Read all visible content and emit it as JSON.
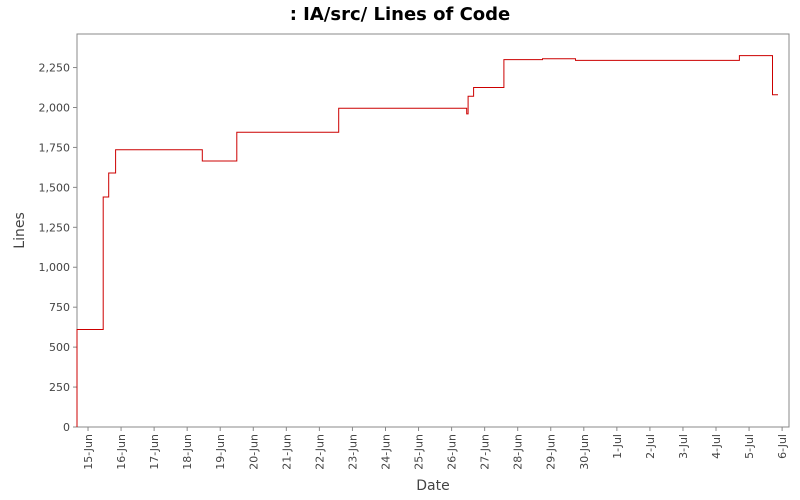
{
  "chart_data": {
    "type": "line",
    "title": ": IA/src/ Lines of Code",
    "xlabel": "Date",
    "ylabel": "Lines",
    "line_color": "#cc0000",
    "step": true,
    "grid": false,
    "legend": "none",
    "xlim": [
      "2006-06-14T16:00",
      "2006-07-06T05:00"
    ],
    "ylim": [
      0,
      2460
    ],
    "y_ticks": [
      0,
      250,
      500,
      750,
      1000,
      1250,
      1500,
      1750,
      2000,
      2250
    ],
    "y_tick_labels": [
      "0",
      "250",
      "500",
      "750",
      "1,000",
      "1,250",
      "1,500",
      "1,750",
      "2,000",
      "2,250"
    ],
    "x_ticks": [
      "2006-06-15",
      "2006-06-16",
      "2006-06-17",
      "2006-06-18",
      "2006-06-19",
      "2006-06-20",
      "2006-06-21",
      "2006-06-22",
      "2006-06-23",
      "2006-06-24",
      "2006-06-25",
      "2006-06-26",
      "2006-06-27",
      "2006-06-28",
      "2006-06-29",
      "2006-06-30",
      "2006-07-01",
      "2006-07-02",
      "2006-07-03",
      "2006-07-04",
      "2006-07-05",
      "2006-07-06"
    ],
    "x_tick_labels": [
      "15-Jun",
      "16-Jun",
      "17-Jun",
      "18-Jun",
      "19-Jun",
      "20-Jun",
      "21-Jun",
      "22-Jun",
      "23-Jun",
      "24-Jun",
      "25-Jun",
      "26-Jun",
      "27-Jun",
      "28-Jun",
      "29-Jun",
      "30-Jun",
      "1-Jul",
      "2-Jul",
      "3-Jul",
      "4-Jul",
      "5-Jul",
      "6-Jul"
    ],
    "series": [
      {
        "x": [
          "2006-06-14T16:00",
          "2006-06-14T16:00",
          "2006-06-15T11:00",
          "2006-06-15T11:00",
          "2006-06-15T15:00",
          "2006-06-15T15:00",
          "2006-06-15T20:00",
          "2006-06-15T20:00",
          "2006-06-18T11:00",
          "2006-06-18T11:00",
          "2006-06-19T12:00",
          "2006-06-19T12:00",
          "2006-06-22T14:00",
          "2006-06-22T14:00",
          "2006-06-26T11:00",
          "2006-06-26T11:00",
          "2006-06-26T12:00",
          "2006-06-26T12:00",
          "2006-06-26T16:00",
          "2006-06-26T16:00",
          "2006-06-27T14:00",
          "2006-06-27T14:00",
          "2006-06-28T18:00",
          "2006-06-28T18:00",
          "2006-06-29T18:00",
          "2006-06-29T18:00",
          "2006-07-04T17:00",
          "2006-07-04T17:00",
          "2006-07-05T17:00",
          "2006-07-05T17:00",
          "2006-07-05T21:00"
        ],
        "y": [
          0,
          610,
          610,
          1440,
          1440,
          1590,
          1590,
          1735,
          1735,
          1665,
          1665,
          1845,
          1845,
          1995,
          1995,
          1960,
          1960,
          2070,
          2070,
          2125,
          2125,
          2300,
          2300,
          2305,
          2305,
          2295,
          2295,
          2325,
          2325,
          2080,
          2080
        ]
      }
    ]
  }
}
